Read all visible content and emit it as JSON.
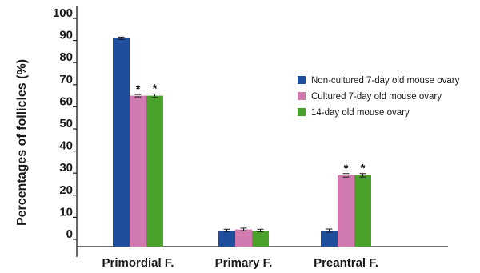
{
  "chart_data": {
    "type": "bar",
    "categories": [
      "Primordial F.",
      "Primary F.",
      "Preantral F."
    ],
    "series": [
      {
        "name": "Non-cultured 7-day old mouse ovary",
        "color": "#1f4e9c",
        "values": [
          91,
          4,
          4
        ],
        "errors": [
          0.3,
          0.6,
          0.7
        ],
        "significance": [
          "",
          "",
          ""
        ]
      },
      {
        "name": "Cultured 7-day old mouse ovary",
        "color": "#d07ab0",
        "values": [
          65,
          4.5,
          29
        ],
        "errors": [
          0.3,
          0.6,
          0.8
        ],
        "significance": [
          "*",
          "",
          "*"
        ]
      },
      {
        "name": "14-day old mouse ovary",
        "color": "#4aa12c",
        "values": [
          65,
          4,
          29
        ],
        "errors": [
          0.8,
          0.6,
          0.8
        ],
        "significance": [
          "*",
          "",
          "*"
        ]
      }
    ],
    "title": "",
    "xlabel": "",
    "ylabel": "Percentages of follicles (%)",
    "yticks": [
      0,
      10,
      20,
      30,
      40,
      50,
      60,
      70,
      80,
      90,
      100
    ],
    "ylim": [
      -3,
      100
    ],
    "grid": false,
    "legend_position": "right"
  }
}
